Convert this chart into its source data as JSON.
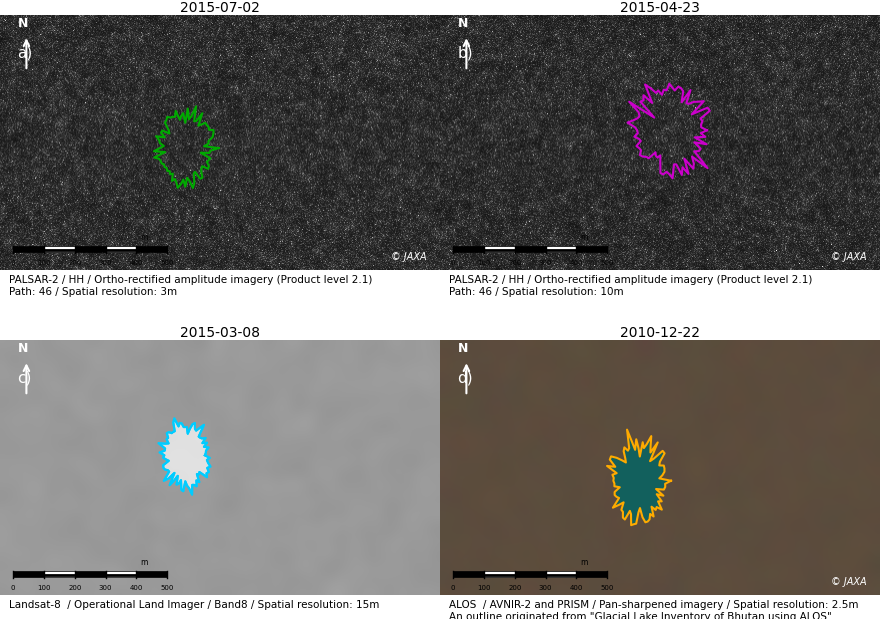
{
  "title_a": "2015-07-02",
  "title_b": "2015-04-23",
  "title_c": "2015-03-08",
  "title_d": "2010-12-22",
  "label_a": "a)",
  "label_b": "b)",
  "label_c": "c)",
  "label_d": "d)",
  "caption_a1": "PALSAR-2 / HH / Ortho-rectified amplitude imagery (Product level 2.1)",
  "caption_a2": "Path: 46 / Spatial resolution: 3m",
  "caption_b1": "PALSAR-2 / HH / Ortho-rectified amplitude imagery (Product level 2.1)",
  "caption_b2": "Path: 46 / Spatial resolution: 10m",
  "caption_c1": "Landsat-8  / Operational Land Imager / Band8 / Spatial resolution: 15m",
  "caption_d1": "ALOS  / AVNIR-2 and PRISM / Pan-sharpened imagery / Spatial resolution: 2.5m",
  "caption_d2": "An outline originated from \"Glacial Lake Inventory of Bhutan using ALOS\"",
  "jaxa": "© JAXA",
  "outline_color_a": "#00aa00",
  "outline_color_b": "#cc00cc",
  "outline_color_c": "#00ccff",
  "outline_color_d_outer": "#ffaa00",
  "outline_color_d_inner": "#008888",
  "bg_color": "#ffffff",
  "title_fontsize": 10,
  "caption_fontsize": 7.5,
  "label_fontsize": 11
}
